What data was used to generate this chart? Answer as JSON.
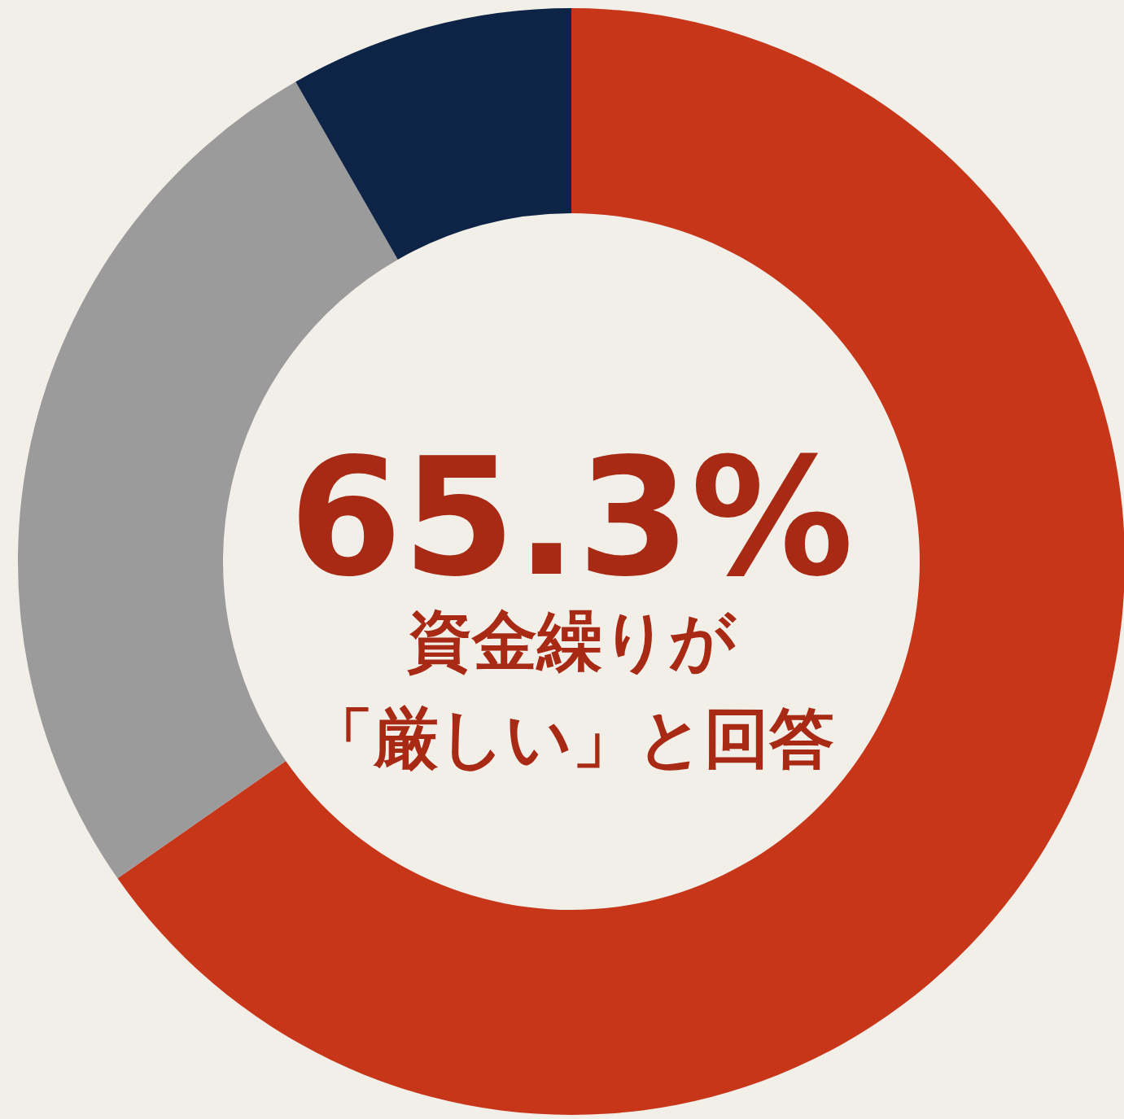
{
  "chart_data": {
    "type": "donut",
    "categories": [
      null,
      null,
      null
    ],
    "values": [
      65.3,
      26.4,
      8.3
    ],
    "colors": [
      "#c8361a",
      "#9b9b9b",
      "#0d2447"
    ],
    "annotations": [
      "65.3%",
      "資金繰りが",
      "「厳しい」と回答"
    ]
  }
}
